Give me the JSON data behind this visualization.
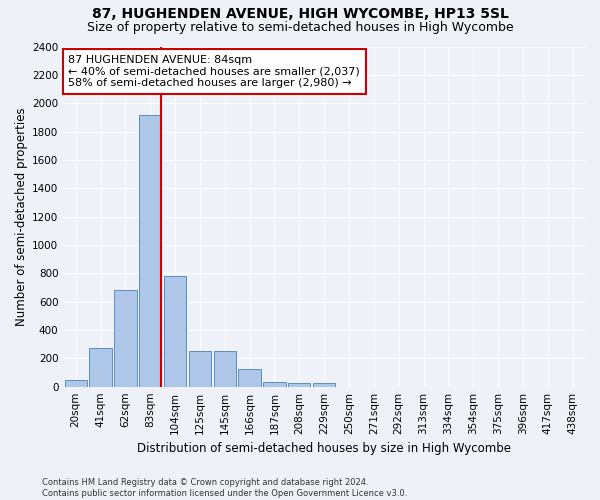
{
  "title_line1": "87, HUGHENDEN AVENUE, HIGH WYCOMBE, HP13 5SL",
  "title_line2": "Size of property relative to semi-detached houses in High Wycombe",
  "xlabel": "Distribution of semi-detached houses by size in High Wycombe",
  "ylabel": "Number of semi-detached properties",
  "footnote": "Contains HM Land Registry data © Crown copyright and database right 2024.\nContains public sector information licensed under the Open Government Licence v3.0.",
  "bar_labels": [
    "20sqm",
    "41sqm",
    "62sqm",
    "83sqm",
    "104sqm",
    "125sqm",
    "145sqm",
    "166sqm",
    "187sqm",
    "208sqm",
    "229sqm",
    "250sqm",
    "271sqm",
    "292sqm",
    "313sqm",
    "334sqm",
    "354sqm",
    "375sqm",
    "396sqm",
    "417sqm",
    "438sqm"
  ],
  "bar_values": [
    50,
    270,
    680,
    1920,
    780,
    250,
    250,
    125,
    30,
    25,
    25,
    0,
    0,
    0,
    0,
    0,
    0,
    0,
    0,
    0,
    0
  ],
  "bar_color": "#aec6e8",
  "bar_edge_color": "#5a8fc2",
  "red_line_color": "#cc0000",
  "annotation_text": "87 HUGHENDEN AVENUE: 84sqm\n← 40% of semi-detached houses are smaller (2,037)\n58% of semi-detached houses are larger (2,980) →",
  "annotation_box_color": "#ffffff",
  "annotation_box_edge": "#cc0000",
  "ylim": [
    0,
    2400
  ],
  "yticks": [
    0,
    200,
    400,
    600,
    800,
    1000,
    1200,
    1400,
    1600,
    1800,
    2000,
    2200,
    2400
  ],
  "background_color": "#eef2f8",
  "grid_color": "#ffffff",
  "title_fontsize": 10,
  "subtitle_fontsize": 9,
  "axis_label_fontsize": 8.5,
  "tick_fontsize": 7.5,
  "annotation_fontsize": 8,
  "footnote_fontsize": 6
}
